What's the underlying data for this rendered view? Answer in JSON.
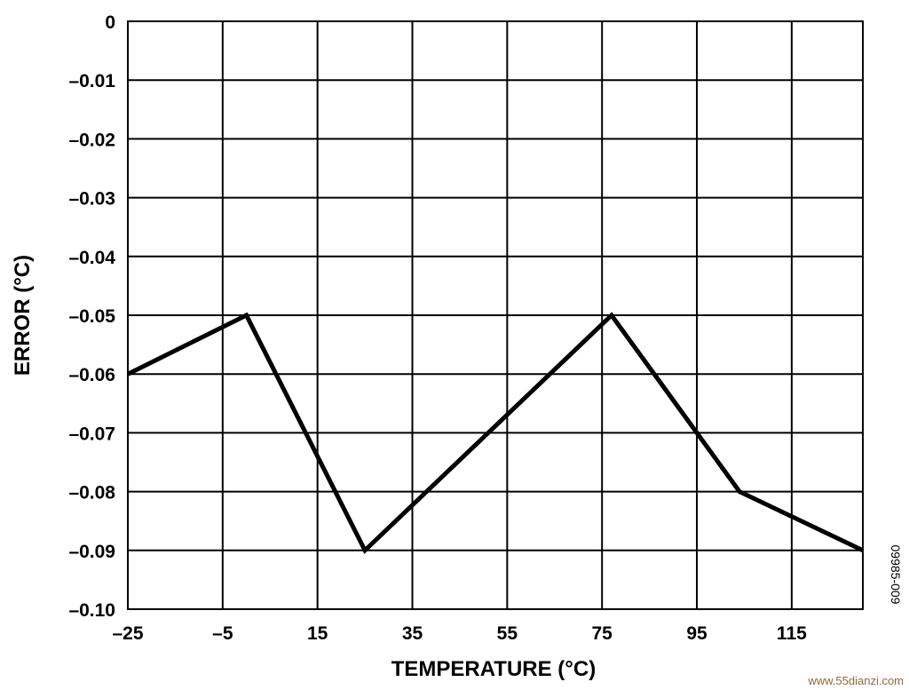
{
  "chart_data": {
    "type": "line",
    "xlabel": "TEMPERATURE (°C)",
    "ylabel": "ERROR (°C)",
    "xlim": [
      -25,
      130
    ],
    "ylim": [
      -0.1,
      0
    ],
    "x_ticks": [
      -25,
      -5,
      15,
      35,
      55,
      75,
      95,
      115
    ],
    "x_tick_labels": [
      "–25",
      "–5",
      "15",
      "35",
      "55",
      "75",
      "95",
      "115"
    ],
    "y_ticks": [
      0,
      -0.01,
      -0.02,
      -0.03,
      -0.04,
      -0.05,
      -0.06,
      -0.07,
      -0.08,
      -0.09,
      -0.1
    ],
    "y_tick_labels": [
      "0",
      "–0.01",
      "–0.02",
      "–0.03",
      "–0.04",
      "–0.05",
      "–0.06",
      "–0.07",
      "–0.08",
      "–0.09",
      "–0.10"
    ],
    "grid": true,
    "series": [
      {
        "x": [
          -25,
          0,
          25,
          77,
          104,
          130
        ],
        "y": [
          -0.06,
          -0.05,
          -0.09,
          -0.05,
          -0.08,
          -0.09
        ]
      }
    ],
    "figure_id": "09985-009"
  },
  "watermark": "www.55dianzi.com"
}
